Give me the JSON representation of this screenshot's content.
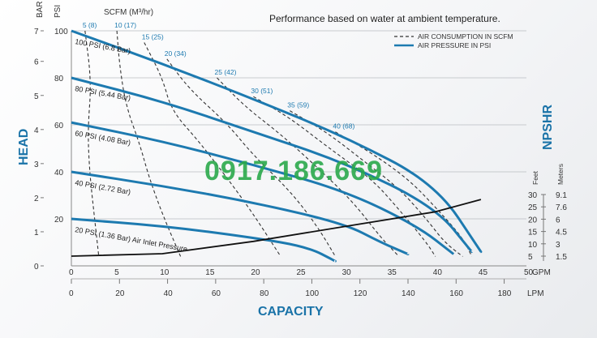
{
  "chart_data": {
    "type": "line",
    "title": "Performance based on water at ambient temperature.",
    "x_capacity_gpm": {
      "ticks": [
        0,
        5,
        10,
        15,
        20,
        25,
        30,
        35,
        40,
        45,
        50
      ],
      "unit": "GPM",
      "range": [
        0,
        50
      ]
    },
    "x_capacity_lpm": {
      "ticks": [
        0,
        20,
        40,
        60,
        80,
        100,
        120,
        140,
        160,
        180
      ],
      "unit": "LPM"
    },
    "x_title": "CAPACITY",
    "y_head_psi": {
      "ticks": [
        20,
        40,
        60,
        80,
        100
      ],
      "unit": "PSI",
      "range": [
        0,
        100
      ]
    },
    "y_head_bar": {
      "ticks": [
        0,
        1,
        2,
        3,
        4,
        5,
        6,
        7
      ],
      "unit": "BAR"
    },
    "y_title": "HEAD",
    "scfm_axis_label": "SCFM (M³/hr)",
    "npshr_title": "NPSHR",
    "npshr_feet": {
      "label": "Feet",
      "ticks": [
        30,
        25,
        20,
        15,
        10,
        5
      ]
    },
    "npshr_meters": {
      "label": "Meters",
      "ticks": [
        "9.1",
        "7.6",
        "6",
        "4.5",
        "3",
        "1.5"
      ]
    },
    "legend": [
      {
        "label": "AIR CONSUMPTION IN SCFM",
        "style": "dashed",
        "color": "#333333"
      },
      {
        "label": "AIR PRESSURE IN PSI",
        "style": "solid",
        "color": "#1d7ab0"
      }
    ],
    "watermark_text": "0917.186.669",
    "pressure_curves": [
      {
        "name": "100 PSI (6.8 Bar)",
        "points": [
          [
            0,
            100
          ],
          [
            10,
            86
          ],
          [
            20,
            71
          ],
          [
            30,
            55
          ],
          [
            40,
            35
          ],
          [
            45,
            6
          ]
        ]
      },
      {
        "name": "80 PSI (5.44 Bar)",
        "points": [
          [
            0,
            80
          ],
          [
            10,
            70
          ],
          [
            20,
            57
          ],
          [
            30,
            44
          ],
          [
            40,
            25
          ],
          [
            44,
            6
          ]
        ]
      },
      {
        "name": "60 PSI (4.08 Bar)",
        "points": [
          [
            0,
            61
          ],
          [
            10,
            53
          ],
          [
            20,
            43
          ],
          [
            30,
            32
          ],
          [
            38,
            17
          ],
          [
            42,
            5
          ]
        ]
      },
      {
        "name": "40 PSI (2.72 Bar)",
        "points": [
          [
            0,
            40
          ],
          [
            10,
            34
          ],
          [
            20,
            27
          ],
          [
            30,
            18
          ],
          [
            34,
            10
          ],
          [
            37,
            5
          ]
        ]
      },
      {
        "name": "20 PSI (1.36 Bar)",
        "extra_label": "Air Inlet Pressure",
        "points": [
          [
            0,
            20
          ],
          [
            10,
            17
          ],
          [
            20,
            12
          ],
          [
            26,
            8
          ],
          [
            29,
            2
          ]
        ]
      }
    ],
    "air_consumption_curves": [
      {
        "name": "5 (8)",
        "points": [
          [
            1.5,
            100
          ],
          [
            2.2,
            78
          ],
          [
            1.8,
            58
          ],
          [
            2,
            40
          ],
          [
            2.5,
            22
          ],
          [
            3,
            4
          ]
        ]
      },
      {
        "name": "10 (17)",
        "points": [
          [
            5,
            100
          ],
          [
            5.3,
            85
          ],
          [
            6,
            68
          ],
          [
            7.5,
            52
          ],
          [
            8.5,
            38
          ],
          [
            10,
            22
          ],
          [
            12,
            4
          ]
        ]
      },
      {
        "name": "15 (25)",
        "points": [
          [
            8,
            95
          ],
          [
            10,
            80
          ],
          [
            11,
            66
          ],
          [
            14,
            53
          ],
          [
            17,
            38
          ],
          [
            20,
            22
          ],
          [
            23,
            4
          ]
        ]
      },
      {
        "name": "20 (34)",
        "points": [
          [
            10.5,
            88
          ],
          [
            13,
            75
          ],
          [
            17,
            61
          ],
          [
            20,
            47
          ],
          [
            24,
            32
          ],
          [
            27,
            17
          ],
          [
            29,
            4
          ]
        ]
      },
      {
        "name": "25 (42)",
        "points": [
          [
            16,
            80
          ],
          [
            19,
            68
          ],
          [
            23,
            56
          ],
          [
            27,
            42
          ],
          [
            31,
            27
          ],
          [
            34,
            12
          ],
          [
            36,
            4
          ]
        ]
      },
      {
        "name": "30 (51)",
        "points": [
          [
            20,
            72
          ],
          [
            24,
            63
          ],
          [
            28,
            51
          ],
          [
            33,
            37
          ],
          [
            36,
            24
          ],
          [
            39,
            10
          ],
          [
            40,
            4
          ]
        ]
      },
      {
        "name": "35 (59)",
        "points": [
          [
            24,
            66
          ],
          [
            28,
            57
          ],
          [
            32,
            45
          ],
          [
            36,
            33
          ],
          [
            39,
            20
          ],
          [
            41,
            10
          ],
          [
            43,
            4
          ]
        ]
      },
      {
        "name": "40 (68)",
        "points": [
          [
            29,
            57
          ],
          [
            33,
            48
          ],
          [
            37,
            37
          ],
          [
            40,
            25
          ],
          [
            43,
            12
          ],
          [
            44,
            4
          ]
        ]
      }
    ],
    "npshr_curve": {
      "points": [
        [
          0,
          5
        ],
        [
          10,
          6
        ],
        [
          20,
          11
        ],
        [
          30,
          17
        ],
        [
          40,
          23
        ],
        [
          45,
          28
        ]
      ]
    }
  }
}
